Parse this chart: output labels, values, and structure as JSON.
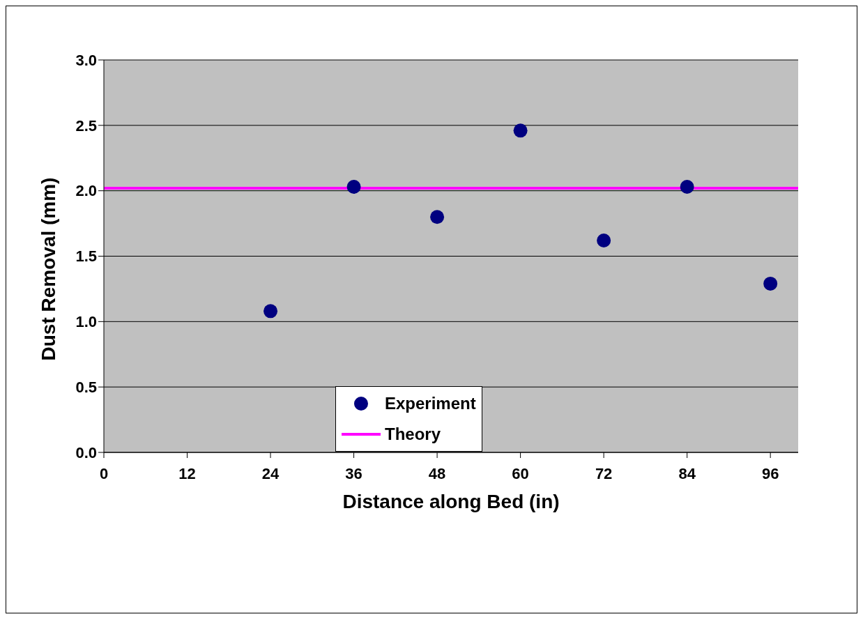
{
  "chart_data": {
    "type": "scatter",
    "xlabel": "Distance along Bed (in)",
    "ylabel": "Dust Removal (mm)",
    "series": [
      {
        "name": "Experiment",
        "color": "#000080",
        "marker": "circle",
        "x": [
          24,
          36,
          48,
          60,
          72,
          84,
          96
        ],
        "values": [
          1.08,
          2.03,
          1.8,
          2.46,
          1.62,
          2.03,
          1.29
        ]
      },
      {
        "name": "Theory",
        "type": "line",
        "marker": "none",
        "color": "#ff00ff",
        "x": [
          0,
          100
        ],
        "values": [
          2.02,
          2.02
        ]
      }
    ],
    "xlim": [
      0,
      100
    ],
    "xticks": [
      0,
      12,
      24,
      36,
      48,
      60,
      72,
      84,
      96
    ],
    "ylim": [
      0,
      3
    ],
    "yticks": [
      {
        "value": 0,
        "label": "0.0"
      },
      {
        "value": 0.5,
        "label": "0.5"
      },
      {
        "value": 1,
        "label": "1.0"
      },
      {
        "value": 1.5,
        "label": "1.5"
      },
      {
        "value": 2,
        "label": "2.0"
      },
      {
        "value": 2.5,
        "label": "2.5"
      },
      {
        "value": 3,
        "label": "3.0"
      }
    ],
    "grid": "y",
    "legend": "bottom",
    "line_style": "solid"
  }
}
